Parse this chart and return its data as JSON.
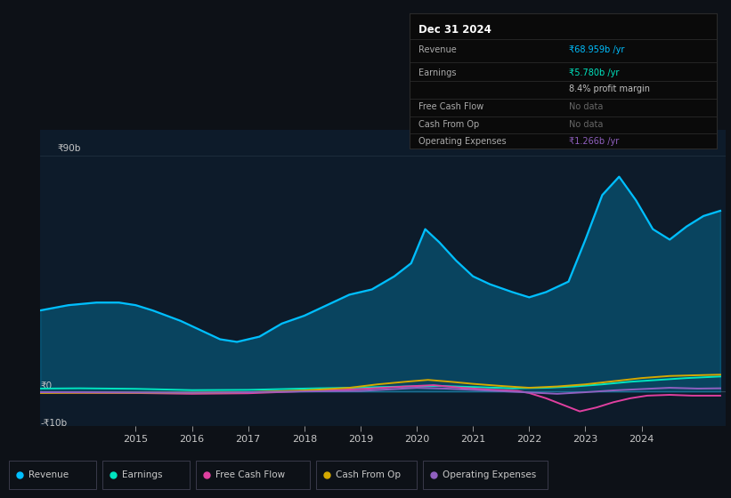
{
  "bg_color": "#0d1117",
  "plot_bg_color": "#0d1b2a",
  "text_color": "#c8c8c8",
  "grid_color": "#2a3a4a",
  "ylabel_top": "₹90b",
  "ylabel_zero": "₹0",
  "ylabel_neg": "-₹10b",
  "x_ticks": [
    2015,
    2016,
    2017,
    2018,
    2019,
    2020,
    2021,
    2022,
    2023,
    2024
  ],
  "xlim": [
    2013.3,
    2025.5
  ],
  "ylim": [
    -13,
    100
  ],
  "revenue_color": "#00bfff",
  "earnings_color": "#00e5c0",
  "fcf_color": "#e040a0",
  "cashfromop_color": "#d4a800",
  "opex_color": "#9060c0",
  "legend_items": [
    "Revenue",
    "Earnings",
    "Free Cash Flow",
    "Cash From Op",
    "Operating Expenses"
  ],
  "legend_colors": [
    "#00bfff",
    "#00e5c0",
    "#e040a0",
    "#d4a800",
    "#9060c0"
  ],
  "info_box": {
    "date": "Dec 31 2024",
    "revenue_label": "Revenue",
    "revenue_value": "₹68.959b /yr",
    "earnings_label": "Earnings",
    "earnings_value": "₹5.780b /yr",
    "margin_text": "8.4% profit margin",
    "fcf_label": "Free Cash Flow",
    "fcf_value": "No data",
    "cashop_label": "Cash From Op",
    "cashop_value": "No data",
    "opex_label": "Operating Expenses",
    "opex_value": "₹1.266b /yr"
  },
  "revenue_x": [
    2013.3,
    2013.8,
    2014.3,
    2014.7,
    2015.0,
    2015.3,
    2015.8,
    2016.2,
    2016.5,
    2016.8,
    2017.2,
    2017.6,
    2018.0,
    2018.4,
    2018.8,
    2019.2,
    2019.6,
    2019.9,
    2020.15,
    2020.4,
    2020.7,
    2021.0,
    2021.3,
    2021.7,
    2022.0,
    2022.3,
    2022.7,
    2023.0,
    2023.3,
    2023.6,
    2023.9,
    2024.2,
    2024.5,
    2024.8,
    2025.1,
    2025.4
  ],
  "revenue_y": [
    31,
    33,
    34,
    34,
    33,
    31,
    27,
    23,
    20,
    19,
    21,
    26,
    29,
    33,
    37,
    39,
    44,
    49,
    62,
    57,
    50,
    44,
    41,
    38,
    36,
    38,
    42,
    58,
    75,
    82,
    73,
    62,
    58,
    63,
    67,
    69
  ],
  "earnings_x": [
    2013.3,
    2014.0,
    2015.0,
    2016.0,
    2017.0,
    2018.0,
    2019.0,
    2019.8,
    2020.4,
    2021.0,
    2021.7,
    2022.3,
    2022.8,
    2023.3,
    2023.8,
    2024.3,
    2024.8,
    2025.4
  ],
  "earnings_y": [
    1.2,
    1.3,
    1.1,
    0.6,
    0.7,
    1.2,
    1.6,
    2.0,
    2.2,
    1.8,
    1.3,
    1.5,
    2.0,
    2.8,
    3.8,
    4.5,
    5.2,
    5.8
  ],
  "fcf_x": [
    2013.3,
    2014.0,
    2015.0,
    2016.0,
    2017.0,
    2018.0,
    2019.0,
    2019.8,
    2020.3,
    2020.8,
    2021.3,
    2021.8,
    2022.0,
    2022.3,
    2022.6,
    2022.9,
    2023.2,
    2023.5,
    2023.8,
    2024.1,
    2024.5,
    2024.9,
    2025.4
  ],
  "fcf_y": [
    -0.3,
    -0.4,
    -0.5,
    -0.8,
    -0.6,
    0.2,
    1.0,
    2.0,
    2.5,
    1.5,
    0.8,
    0.3,
    -0.5,
    -2.5,
    -5.0,
    -7.5,
    -6.0,
    -4.0,
    -2.5,
    -1.5,
    -1.2,
    -1.5,
    -1.5
  ],
  "cashop_x": [
    2013.3,
    2014.0,
    2015.0,
    2016.0,
    2017.0,
    2018.0,
    2018.8,
    2019.3,
    2019.8,
    2020.2,
    2020.6,
    2021.0,
    2021.5,
    2022.0,
    2022.5,
    2023.0,
    2023.5,
    2024.0,
    2024.5,
    2025.0,
    2025.4
  ],
  "cashop_y": [
    -0.5,
    -0.4,
    -0.4,
    -0.4,
    -0.2,
    0.5,
    1.5,
    2.8,
    3.8,
    4.5,
    3.8,
    3.0,
    2.2,
    1.5,
    2.0,
    2.8,
    4.0,
    5.2,
    6.0,
    6.3,
    6.5
  ],
  "opex_x": [
    2013.3,
    2014.0,
    2015.0,
    2016.0,
    2017.0,
    2018.0,
    2019.0,
    2019.6,
    2020.0,
    2020.5,
    2021.0,
    2021.5,
    2022.0,
    2022.5,
    2023.0,
    2023.5,
    2024.0,
    2024.5,
    2025.0,
    2025.4
  ],
  "opex_y": [
    -0.2,
    -0.2,
    -0.3,
    -0.4,
    -0.2,
    0.1,
    0.3,
    1.0,
    1.5,
    1.2,
    0.7,
    0.2,
    -0.3,
    -0.8,
    -0.2,
    0.5,
    1.0,
    1.5,
    1.2,
    1.3
  ]
}
